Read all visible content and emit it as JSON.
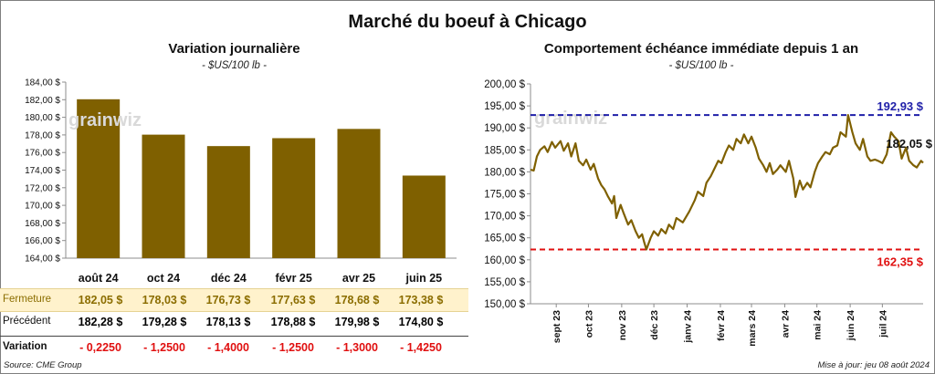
{
  "title": "Marché du boeuf à Chicago",
  "left": {
    "subtitle": "Variation  journalière",
    "unit": "- $US/100 lb -"
  },
  "right": {
    "subtitle": "Comportement  échéance immédiate depuis 1 an",
    "unit": "- $US/100 lb -"
  },
  "watermark": "grainwiz",
  "table": {
    "close_label": "Fermeture",
    "prev_label": "Précédent",
    "var_label": "Variation",
    "close": [
      "182,05  $",
      "178,03  $",
      "176,73  $",
      "177,63  $",
      "178,68  $",
      "173,38  $"
    ],
    "prev": [
      "182,28  $",
      "179,28  $",
      "178,13  $",
      "178,88  $",
      "179,98  $",
      "174,80  $"
    ],
    "var": [
      "- 0,2250",
      "- 1,2500",
      "- 1,4000",
      "- 1,2500",
      "- 1,3000",
      "- 1,4250"
    ]
  },
  "footer": {
    "source": "Source: CME Group",
    "updated": "Mise à jour: jeu 08 août 2024"
  },
  "colors": {
    "bar": "#7f6000",
    "line": "#7f6000",
    "high": "#1f1fa8",
    "low": "#e01010",
    "highlight_row": "#fff2cc"
  },
  "chart_data": [
    {
      "type": "bar",
      "categories": [
        "août 24",
        "oct 24",
        "déc 24",
        "févr 25",
        "avr 25",
        "juin 25"
      ],
      "values": [
        182.05,
        178.03,
        176.73,
        177.63,
        178.68,
        173.38
      ],
      "ylim": [
        164,
        184
      ],
      "yticks": [
        "164,00 $",
        "166,00 $",
        "168,00 $",
        "170,00 $",
        "172,00 $",
        "174,00 $",
        "176,00 $",
        "178,00 $",
        "180,00 $",
        "182,00 $",
        "184,00 $"
      ],
      "grid": false
    },
    {
      "type": "line",
      "ylim": [
        150,
        200
      ],
      "yticks": [
        "150,00 $",
        "155,00 $",
        "160,00 $",
        "165,00 $",
        "170,00 $",
        "175,00 $",
        "180,00 $",
        "185,00 $",
        "190,00 $",
        "195,00 $",
        "200,00 $"
      ],
      "x_start": "2023-08-08",
      "x_end": "2024-08-08",
      "xticks": [
        {
          "label": "sept 23",
          "date": "2023-09-01"
        },
        {
          "label": "oct 23",
          "date": "2023-10-01"
        },
        {
          "label": "nov 23",
          "date": "2023-11-01"
        },
        {
          "label": "déc 23",
          "date": "2023-12-01"
        },
        {
          "label": "janv 24",
          "date": "2024-01-01"
        },
        {
          "label": "févr 24",
          "date": "2024-02-01"
        },
        {
          "label": "mars 24",
          "date": "2024-03-01"
        },
        {
          "label": "avr 24",
          "date": "2024-04-01"
        },
        {
          "label": "mai 24",
          "date": "2024-05-01"
        },
        {
          "label": "juin 24",
          "date": "2024-06-01"
        },
        {
          "label": "juil 24",
          "date": "2024-07-01"
        }
      ],
      "points": [
        [
          "2023-08-08",
          180.5
        ],
        [
          "2023-08-11",
          180.3
        ],
        [
          "2023-08-14",
          183.5
        ],
        [
          "2023-08-17",
          185.0
        ],
        [
          "2023-08-21",
          185.8
        ],
        [
          "2023-08-24",
          184.5
        ],
        [
          "2023-08-28",
          186.8
        ],
        [
          "2023-08-31",
          185.5
        ],
        [
          "2023-09-05",
          187.0
        ],
        [
          "2023-09-08",
          184.8
        ],
        [
          "2023-09-12",
          186.5
        ],
        [
          "2023-09-15",
          183.5
        ],
        [
          "2023-09-19",
          186.5
        ],
        [
          "2023-09-22",
          182.5
        ],
        [
          "2023-09-26",
          181.5
        ],
        [
          "2023-09-29",
          182.8
        ],
        [
          "2023-10-03",
          180.5
        ],
        [
          "2023-10-06",
          181.8
        ],
        [
          "2023-10-10",
          178.5
        ],
        [
          "2023-10-13",
          177.0
        ],
        [
          "2023-10-16",
          176.0
        ],
        [
          "2023-10-19",
          174.5
        ],
        [
          "2023-10-23",
          172.8
        ],
        [
          "2023-10-25",
          174.5
        ],
        [
          "2023-10-27",
          169.5
        ],
        [
          "2023-10-31",
          172.5
        ],
        [
          "2023-11-03",
          170.5
        ],
        [
          "2023-11-07",
          168.0
        ],
        [
          "2023-11-10",
          169.0
        ],
        [
          "2023-11-14",
          166.5
        ],
        [
          "2023-11-17",
          165.0
        ],
        [
          "2023-11-20",
          165.8
        ],
        [
          "2023-11-22",
          164.0
        ],
        [
          "2023-11-24",
          162.35
        ],
        [
          "2023-11-28",
          165.0
        ],
        [
          "2023-12-01",
          166.5
        ],
        [
          "2023-12-05",
          165.5
        ],
        [
          "2023-12-08",
          167.0
        ],
        [
          "2023-12-12",
          166.0
        ],
        [
          "2023-12-15",
          168.0
        ],
        [
          "2023-12-19",
          167.0
        ],
        [
          "2023-12-22",
          169.5
        ],
        [
          "2023-12-28",
          168.5
        ],
        [
          "2024-01-03",
          171.0
        ],
        [
          "2024-01-08",
          173.5
        ],
        [
          "2024-01-11",
          175.5
        ],
        [
          "2024-01-16",
          174.5
        ],
        [
          "2024-01-19",
          177.5
        ],
        [
          "2024-01-23",
          179.0
        ],
        [
          "2024-01-26",
          180.5
        ],
        [
          "2024-01-30",
          182.5
        ],
        [
          "2024-02-02",
          182.0
        ],
        [
          "2024-02-06",
          184.5
        ],
        [
          "2024-02-09",
          186.0
        ],
        [
          "2024-02-13",
          185.0
        ],
        [
          "2024-02-16",
          187.5
        ],
        [
          "2024-02-20",
          186.5
        ],
        [
          "2024-02-23",
          188.5
        ],
        [
          "2024-02-27",
          186.5
        ],
        [
          "2024-03-01",
          188.0
        ],
        [
          "2024-03-05",
          185.5
        ],
        [
          "2024-03-08",
          183.0
        ],
        [
          "2024-03-12",
          181.5
        ],
        [
          "2024-03-15",
          180.0
        ],
        [
          "2024-03-18",
          182.0
        ],
        [
          "2024-03-21",
          179.5
        ],
        [
          "2024-03-25",
          180.5
        ],
        [
          "2024-03-28",
          181.5
        ],
        [
          "2024-04-02",
          180.0
        ],
        [
          "2024-04-05",
          182.5
        ],
        [
          "2024-04-09",
          178.5
        ],
        [
          "2024-04-11",
          174.3
        ],
        [
          "2024-04-15",
          178.0
        ],
        [
          "2024-04-18",
          176.0
        ],
        [
          "2024-04-22",
          177.5
        ],
        [
          "2024-04-25",
          176.5
        ],
        [
          "2024-04-29",
          180.0
        ],
        [
          "2024-05-02",
          182.0
        ],
        [
          "2024-05-06",
          183.5
        ],
        [
          "2024-05-09",
          184.5
        ],
        [
          "2024-05-13",
          184.0
        ],
        [
          "2024-05-16",
          185.5
        ],
        [
          "2024-05-20",
          186.0
        ],
        [
          "2024-05-23",
          189.0
        ],
        [
          "2024-05-28",
          188.0
        ],
        [
          "2024-05-30",
          192.93
        ],
        [
          "2024-06-03",
          189.0
        ],
        [
          "2024-06-06",
          186.5
        ],
        [
          "2024-06-10",
          185.0
        ],
        [
          "2024-06-13",
          187.5
        ],
        [
          "2024-06-17",
          183.5
        ],
        [
          "2024-06-20",
          182.5
        ],
        [
          "2024-06-24",
          182.8
        ],
        [
          "2024-06-27",
          182.5
        ],
        [
          "2024-07-01",
          182.0
        ],
        [
          "2024-07-05",
          184.0
        ],
        [
          "2024-07-09",
          189.0
        ],
        [
          "2024-07-12",
          188.0
        ],
        [
          "2024-07-16",
          187.0
        ],
        [
          "2024-07-19",
          183.0
        ],
        [
          "2024-07-23",
          185.5
        ],
        [
          "2024-07-26",
          182.5
        ],
        [
          "2024-07-30",
          181.5
        ],
        [
          "2024-08-02",
          181.0
        ],
        [
          "2024-08-06",
          182.5
        ],
        [
          "2024-08-08",
          182.05
        ]
      ],
      "high": {
        "value": 192.93,
        "label": "192,93 $"
      },
      "low": {
        "value": 162.35,
        "label": "162,35 $"
      },
      "last_label": "182,05 $",
      "grid": false
    }
  ]
}
